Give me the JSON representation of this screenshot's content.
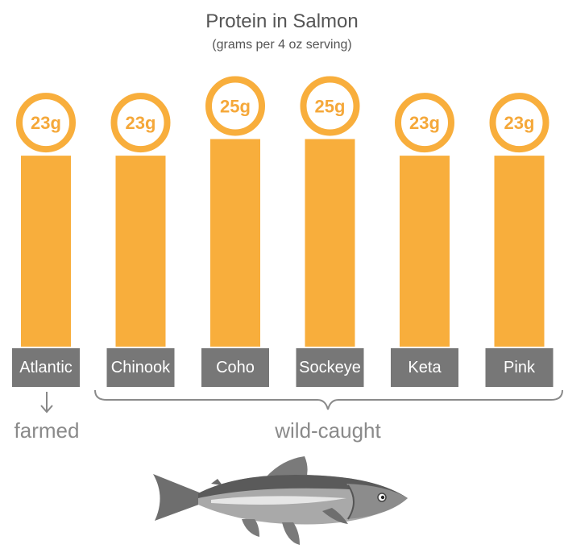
{
  "chart_data": {
    "type": "bar",
    "title": "Protein in Salmon",
    "subtitle": "(grams per 4 oz serving)",
    "categories": [
      "Atlantic",
      "Chinook",
      "Coho",
      "Sockeye",
      "Keta",
      "Pink"
    ],
    "values": [
      23,
      23,
      25,
      25,
      23,
      23
    ],
    "value_labels": [
      "23g",
      "23g",
      "25g",
      "25g",
      "23g",
      "23g"
    ],
    "groups": [
      {
        "label": "farmed",
        "categories": [
          "Atlantic"
        ]
      },
      {
        "label": "wild-caught",
        "categories": [
          "Chinook",
          "Coho",
          "Sockeye",
          "Keta",
          "Pink"
        ]
      }
    ],
    "ylim": [
      0,
      25
    ],
    "grid": false,
    "legend": "none"
  },
  "colors": {
    "bar": "#f8ae3c",
    "ring": "#f8ae3c",
    "label_box": "#777777",
    "group_text": "#8a8a8a"
  },
  "icons": [
    "arrow-down-icon",
    "brace-icon",
    "salmon-fish-icon"
  ]
}
